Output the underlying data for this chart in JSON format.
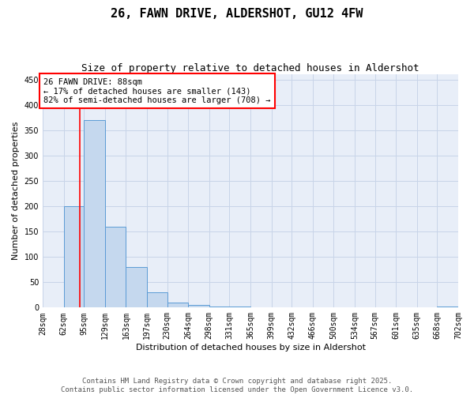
{
  "title": "26, FAWN DRIVE, ALDERSHOT, GU12 4FW",
  "subtitle": "Size of property relative to detached houses in Aldershot",
  "xlabel": "Distribution of detached houses by size in Aldershot",
  "ylabel": "Number of detached properties",
  "bins": [
    28,
    62,
    95,
    129,
    163,
    197,
    230,
    264,
    298,
    331,
    365,
    399,
    432,
    466,
    500,
    534,
    567,
    601,
    635,
    668,
    702
  ],
  "bin_labels": [
    "28sqm",
    "62sqm",
    "95sqm",
    "129sqm",
    "163sqm",
    "197sqm",
    "230sqm",
    "264sqm",
    "298sqm",
    "331sqm",
    "365sqm",
    "399sqm",
    "432sqm",
    "466sqm",
    "500sqm",
    "534sqm",
    "567sqm",
    "601sqm",
    "635sqm",
    "668sqm",
    "702sqm"
  ],
  "values": [
    0,
    200,
    370,
    160,
    80,
    30,
    10,
    5,
    2,
    2,
    0,
    0,
    0,
    0,
    0,
    0,
    0,
    0,
    0,
    2
  ],
  "bar_color": "#c5d8ee",
  "bar_edge_color": "#5b9bd5",
  "bar_alpha": 1.0,
  "grid_color": "#c8d4e8",
  "background_color": "#e8eef8",
  "ylim": [
    0,
    460
  ],
  "yticks": [
    0,
    50,
    100,
    150,
    200,
    250,
    300,
    350,
    400,
    450
  ],
  "red_line_x": 88,
  "annotation_text": "26 FAWN DRIVE: 88sqm\n← 17% of detached houses are smaller (143)\n82% of semi-detached houses are larger (708) →",
  "footer_line1": "Contains HM Land Registry data © Crown copyright and database right 2025.",
  "footer_line2": "Contains public sector information licensed under the Open Government Licence v3.0.",
  "title_fontsize": 11,
  "subtitle_fontsize": 9,
  "axis_label_fontsize": 8,
  "tick_fontsize": 7,
  "annotation_fontsize": 7.5,
  "footer_fontsize": 6.5
}
